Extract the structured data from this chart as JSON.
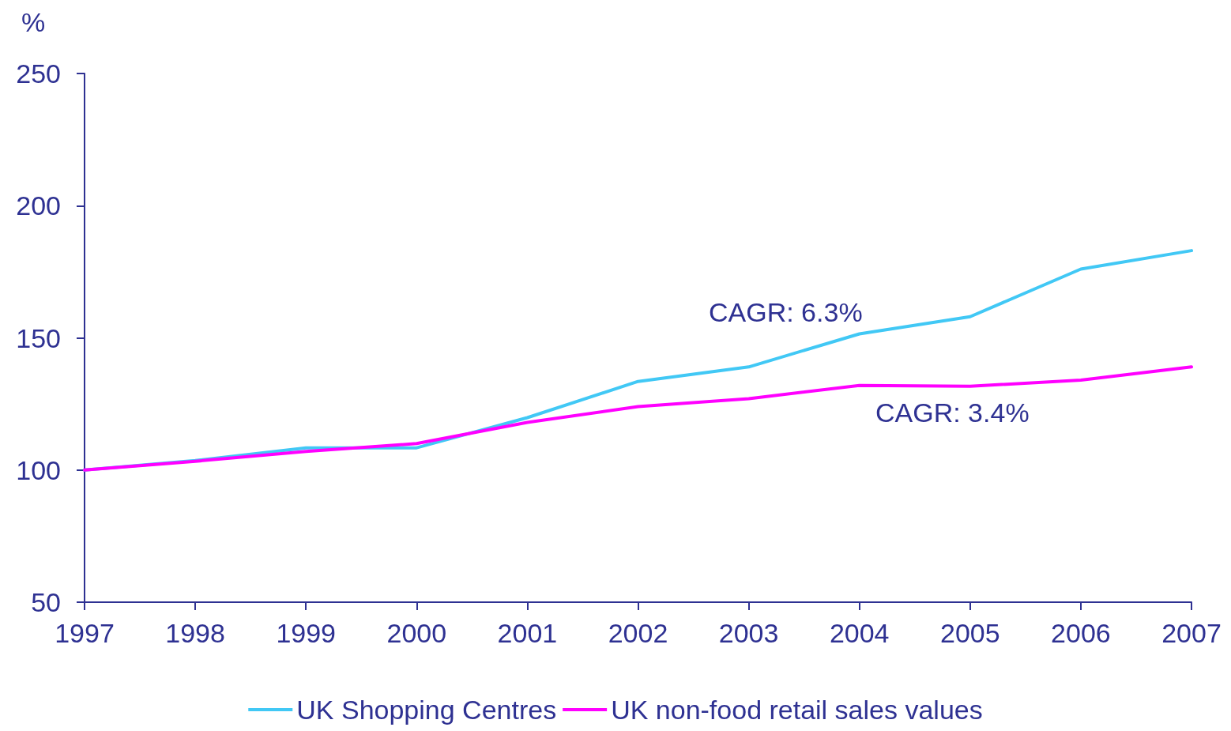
{
  "chart_data": {
    "type": "line",
    "ylabel": "%",
    "x": [
      1997,
      1998,
      1999,
      2000,
      2001,
      2002,
      2003,
      2004,
      2005,
      2006,
      2007
    ],
    "xlim": [
      1997,
      2007
    ],
    "xticks": [
      1997,
      1998,
      1999,
      2000,
      2001,
      2002,
      2003,
      2004,
      2005,
      2006,
      2007
    ],
    "ylim": [
      50,
      250
    ],
    "yticks": [
      50,
      100,
      150,
      200,
      250
    ],
    "series": [
      {
        "name": "UK Shopping Centres",
        "color": "#41c8f5",
        "values": [
          100,
          103.6,
          108.4,
          108.4,
          119.8,
          133.5,
          139,
          151.5,
          158,
          176,
          183
        ]
      },
      {
        "name": "UK non-food retail sales values",
        "color": "#ff00ff",
        "values": [
          100,
          103.3,
          107,
          110,
          118,
          124,
          127,
          132,
          131.7,
          134,
          139
        ]
      }
    ],
    "annotations": [
      "CAGR: 6.3%",
      "CAGR: 3.4%"
    ],
    "grid": false,
    "legend": "bottom",
    "marker": "none",
    "line_style": "solid"
  }
}
